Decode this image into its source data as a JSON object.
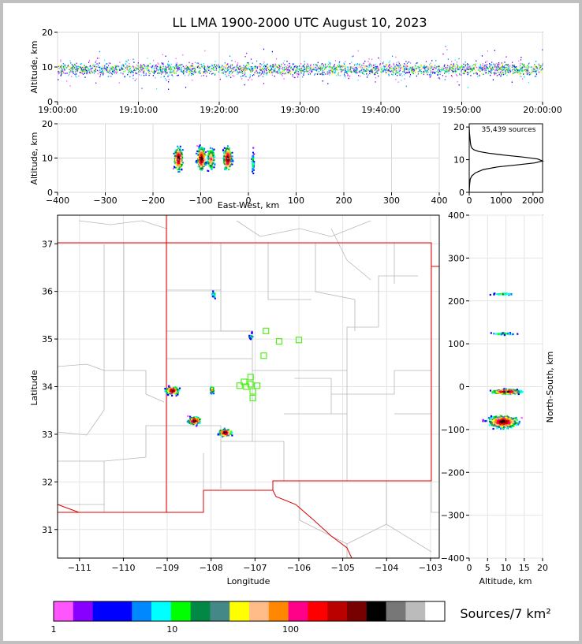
{
  "title": "LL LMA 1900-2000 UTC August 10, 2023",
  "chart_data": [
    {
      "panel": "time-height",
      "type": "heatmap",
      "ylabel": "Altitude, km",
      "xticks": [
        "19:00:00",
        "19:10:00",
        "19:20:00",
        "19:30:00",
        "19:40:00",
        "19:50:00",
        "20:00:00"
      ],
      "xlim_minutes": [
        0,
        60
      ],
      "ylim": [
        0,
        20
      ],
      "yticks": [
        0,
        10,
        20
      ],
      "main_altitude_km": [
        6,
        12
      ]
    },
    {
      "panel": "east-west-altitude",
      "type": "heatmap",
      "xlabel": "East-West, km",
      "ylabel": "Altitude, km",
      "xlim": [
        -400,
        400
      ],
      "xticks": [
        -400,
        -300,
        -200,
        -100,
        0,
        100,
        200,
        300,
        400
      ],
      "ylim": [
        0,
        20
      ],
      "yticks": [
        0,
        10,
        20
      ],
      "clusters": [
        {
          "x": -148,
          "alt": 10,
          "count_level": "high"
        },
        {
          "x": -100,
          "alt": 10,
          "count_level": "high"
        },
        {
          "x": -80,
          "alt": 10,
          "count_level": "medium"
        },
        {
          "x": -45,
          "alt": 10,
          "count_level": "high"
        },
        {
          "x": 8,
          "alt": 9,
          "count_level": "low"
        }
      ]
    },
    {
      "panel": "altitude-histogram",
      "type": "line",
      "annotation": "35,439 sources",
      "xlim": [
        0,
        2300
      ],
      "xticks": [
        0,
        1000,
        2000
      ],
      "ylim": [
        0,
        21
      ],
      "yticks": [
        0,
        10,
        20
      ],
      "x": [
        0,
        10,
        30,
        80,
        200,
        450,
        900,
        1500,
        2050,
        2300,
        2150,
        1700,
        1100,
        600,
        300,
        150,
        90,
        60,
        40,
        30,
        20,
        10,
        0
      ],
      "y": [
        0,
        2,
        4,
        5,
        6,
        7,
        7.8,
        8.4,
        9,
        9.6,
        10.2,
        10.8,
        11.4,
        12,
        12.5,
        13,
        13.5,
        14,
        15,
        16,
        17,
        18,
        20
      ]
    },
    {
      "panel": "plan-view",
      "type": "scatter",
      "xlabel": "Longitude",
      "ylabel": "Latitude",
      "xlim": [
        -111.5,
        -102.8
      ],
      "ylim": [
        30.4,
        37.6
      ],
      "xticks": [
        -111,
        -110,
        -109,
        -108,
        -107,
        -106,
        -105,
        -104,
        -103
      ],
      "yticks": [
        31,
        32,
        33,
        34,
        35,
        36,
        37
      ],
      "storms": [
        {
          "lon": -108.9,
          "lat": 33.93,
          "level": "high"
        },
        {
          "lon": -108.4,
          "lat": 33.3,
          "level": "high"
        },
        {
          "lon": -107.7,
          "lat": 33.05,
          "level": "high"
        },
        {
          "lon": -108.0,
          "lat": 33.95,
          "level": "medium"
        },
        {
          "lon": -107.95,
          "lat": 35.95,
          "level": "low"
        },
        {
          "lon": -107.1,
          "lat": 35.08,
          "level": "low"
        }
      ],
      "stations": [
        {
          "lon": -106.75,
          "lat": 35.17
        },
        {
          "lon": -106.45,
          "lat": 34.95
        },
        {
          "lon": -106.0,
          "lat": 34.98
        },
        {
          "lon": -106.8,
          "lat": 34.65
        },
        {
          "lon": -107.1,
          "lat": 34.2
        },
        {
          "lon": -107.25,
          "lat": 34.1
        },
        {
          "lon": -107.1,
          "lat": 34.05
        },
        {
          "lon": -107.35,
          "lat": 34.02
        },
        {
          "lon": -107.2,
          "lat": 34.0
        },
        {
          "lon": -106.95,
          "lat": 34.02
        },
        {
          "lon": -107.05,
          "lat": 33.9
        },
        {
          "lon": -107.05,
          "lat": 33.76
        }
      ]
    },
    {
      "panel": "altitude-north-south",
      "type": "heatmap",
      "xlabel": "Altitude, km",
      "ylabel": "North-South, km",
      "xlim": [
        0,
        20
      ],
      "xticks": [
        0,
        5,
        10,
        15,
        20
      ],
      "ylim": [
        -400,
        400
      ],
      "yticks": [
        -400,
        -300,
        -200,
        -100,
        0,
        100,
        200,
        300,
        400
      ],
      "clusters": [
        {
          "alt": 10,
          "ns": -10,
          "count_level": "high"
        },
        {
          "alt": 9,
          "ns": -80,
          "count_level": "high"
        },
        {
          "alt": 9,
          "ns": 125,
          "count_level": "low"
        },
        {
          "alt": 9,
          "ns": 218,
          "count_level": "low"
        }
      ]
    }
  ],
  "colorbar": {
    "label": "Sources/7 km²",
    "ticks": [
      "1",
      "10",
      "100"
    ],
    "colors": [
      "#ff55ff",
      "#8800ff",
      "#0000ff",
      "#0000ff",
      "#0088ff",
      "#00ffff",
      "#00ff00",
      "#008844",
      "#448888",
      "#ffff00",
      "#ffbb88",
      "#ff8800",
      "#ff0088",
      "#ff0000",
      "#bb0000",
      "#770000",
      "#000000",
      "#777777",
      "#bbbbbb",
      "#ffffff"
    ]
  }
}
